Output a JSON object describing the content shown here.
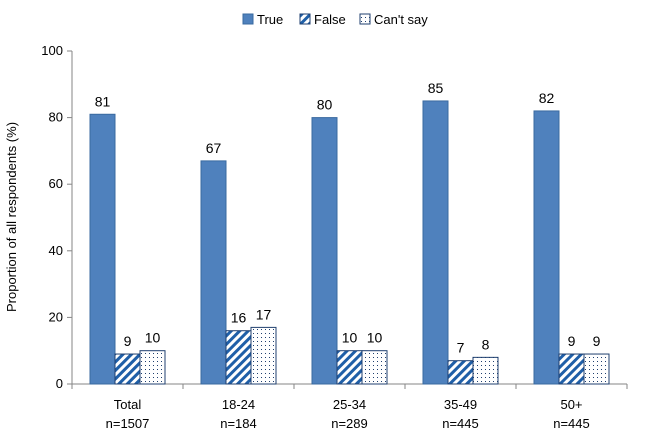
{
  "chart_data": {
    "type": "bar",
    "title": "",
    "xlabel": "",
    "ylabel": "Proportion of all respondents (%)",
    "ylim": [
      0,
      100
    ],
    "yticks": [
      0,
      20,
      40,
      60,
      80,
      100
    ],
    "grid": false,
    "legend_position": "top-center",
    "categories": [
      [
        "Total",
        "n=1507"
      ],
      [
        "18-24",
        "n=184"
      ],
      [
        "25-34",
        "n=289"
      ],
      [
        "35-49",
        "n=445"
      ],
      [
        "50+",
        "n=445"
      ]
    ],
    "series": [
      {
        "name": "True",
        "values": [
          81,
          67,
          80,
          85,
          82
        ],
        "color": "#4f81bd",
        "pattern": "solid"
      },
      {
        "name": "False",
        "values": [
          9,
          16,
          10,
          7,
          9
        ],
        "color": "#1f5fa8",
        "pattern": "diagonal-hatch"
      },
      {
        "name": "Can't say",
        "values": [
          10,
          17,
          10,
          8,
          9
        ],
        "color": "#1f3f6f",
        "pattern": "dots"
      }
    ]
  }
}
